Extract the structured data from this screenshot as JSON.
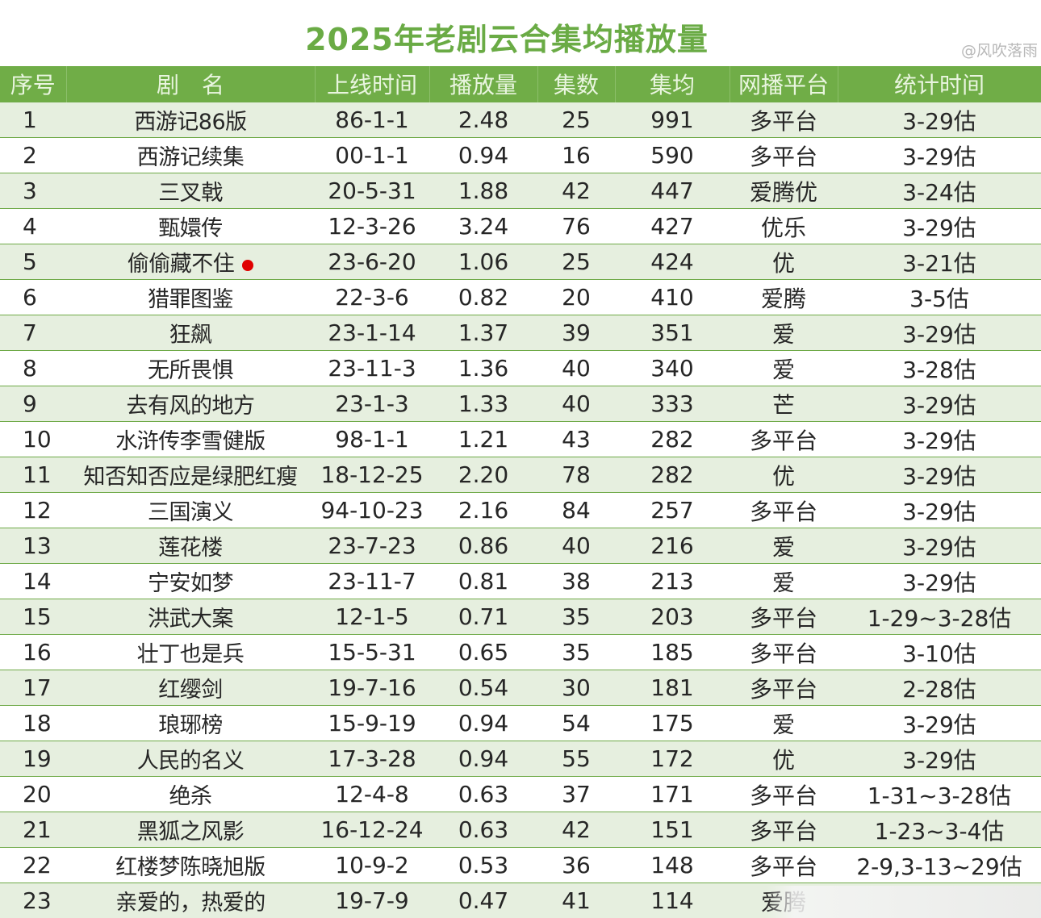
{
  "title": "2025年老剧云合集均播放量",
  "watermark": "@风吹落雨",
  "table": {
    "headers": [
      "序号",
      "剧　名",
      "上线时间",
      "播放量",
      "集数",
      "集均",
      "网播平台",
      "统计时间"
    ],
    "rows": [
      [
        "1",
        "西游记86版",
        "86-1-1",
        "2.48",
        "25",
        "991",
        "多平台",
        "3-29估"
      ],
      [
        "2",
        "西游记续集",
        "00-1-1",
        "0.94",
        "16",
        "590",
        "多平台",
        "3-29估"
      ],
      [
        "3",
        "三叉戟",
        "20-5-31",
        "1.88",
        "42",
        "447",
        "爱腾优",
        "3-24估"
      ],
      [
        "4",
        "甄嬛传",
        "12-3-26",
        "3.24",
        "76",
        "427",
        "优乐",
        "3-29估"
      ],
      [
        "5",
        "偷偷藏不住",
        "23-6-20",
        "1.06",
        "25",
        "424",
        "优",
        "3-21估"
      ],
      [
        "6",
        "猎罪图鉴",
        "22-3-6",
        "0.82",
        "20",
        "410",
        "爱腾",
        "3-5估"
      ],
      [
        "7",
        "狂飙",
        "23-1-14",
        "1.37",
        "39",
        "351",
        "爱",
        "3-29估"
      ],
      [
        "8",
        "无所畏惧",
        "23-11-3",
        "1.36",
        "40",
        "340",
        "爱",
        "3-28估"
      ],
      [
        "9",
        "去有风的地方",
        "23-1-3",
        "1.33",
        "40",
        "333",
        "芒",
        "3-29估"
      ],
      [
        "10",
        "水浒传李雪健版",
        "98-1-1",
        "1.21",
        "43",
        "282",
        "多平台",
        "3-29估"
      ],
      [
        "11",
        "知否知否应是绿肥红瘦",
        "18-12-25",
        "2.20",
        "78",
        "282",
        "优",
        "3-29估"
      ],
      [
        "12",
        "三国演义",
        "94-10-23",
        "2.16",
        "84",
        "257",
        "多平台",
        "3-29估"
      ],
      [
        "13",
        "莲花楼",
        "23-7-23",
        "0.86",
        "40",
        "216",
        "爱",
        "3-29估"
      ],
      [
        "14",
        "宁安如梦",
        "23-11-7",
        "0.81",
        "38",
        "213",
        "爱",
        "3-29估"
      ],
      [
        "15",
        "洪武大案",
        "12-1-5",
        "0.71",
        "35",
        "203",
        "多平台",
        "1-29~3-28估"
      ],
      [
        "16",
        "壮丁也是兵",
        "15-5-31",
        "0.65",
        "35",
        "185",
        "多平台",
        "3-10估"
      ],
      [
        "17",
        "红缨剑",
        "19-7-16",
        "0.54",
        "30",
        "181",
        "多平台",
        "2-28估"
      ],
      [
        "18",
        "琅琊榜",
        "15-9-19",
        "0.94",
        "54",
        "175",
        "爱",
        "3-29估"
      ],
      [
        "19",
        "人民的名义",
        "17-3-28",
        "0.94",
        "55",
        "172",
        "优",
        "3-29估"
      ],
      [
        "20",
        "绝杀",
        "12-4-8",
        "0.63",
        "37",
        "171",
        "多平台",
        "1-31~3-28估"
      ],
      [
        "21",
        "黑狐之风影",
        "16-12-24",
        "0.63",
        "42",
        "151",
        "多平台",
        "1-23~3-4估"
      ],
      [
        "22",
        "红楼梦陈晓旭版",
        "10-9-2",
        "0.53",
        "36",
        "148",
        "多平台",
        "2-9,3-13~29估"
      ],
      [
        "23",
        "亲爱的，热爱的",
        "19-7-9",
        "0.47",
        "41",
        "114",
        "爱腾",
        ""
      ]
    ],
    "marked_row": 4,
    "marker_color": "#e00000"
  },
  "colors": {
    "header_bg": "#70ad47",
    "title": "#6aab45",
    "stripe": "#e6efdf"
  }
}
